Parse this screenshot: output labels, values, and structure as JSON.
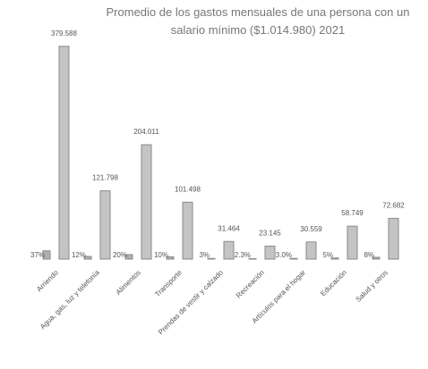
{
  "chart_data": {
    "type": "bar",
    "title": "Promedio de los gastos mensuales de una persona con un salario mínimo ($1.014.980) 2021",
    "categories": [
      "Arriendo",
      "Agua, gas, luz y telefonía",
      "Alimentos",
      "Transporte",
      "Prendas de vestir y calzado",
      "Recreación",
      "Artículos para el hogar",
      "Educación",
      "Salud y otros"
    ],
    "series": [
      {
        "color": "#b0b0b0",
        "axis": "y2",
        "values": [
          37,
          12,
          20,
          10,
          3,
          2.3,
          3.0,
          5,
          8
        ],
        "value_labels": [
          "37%",
          "12%",
          "20%",
          "10%",
          "3%",
          "2.3%",
          "3.0%",
          "5%",
          "8%"
        ]
      },
      {
        "color": "#c4c4c4",
        "values": [
          379588,
          121798,
          204011,
          101498,
          31464,
          23145,
          30559,
          58749,
          72682
        ],
        "value_labels": [
          "379.588",
          "121.798",
          "204.011",
          "101.498",
          "31.464",
          "23.145",
          "30.559",
          "58.749",
          "72.682"
        ]
      }
    ],
    "ylim": [
      0,
      400000
    ],
    "y2lim": [
      0,
      1000
    ],
    "grid": false
  }
}
